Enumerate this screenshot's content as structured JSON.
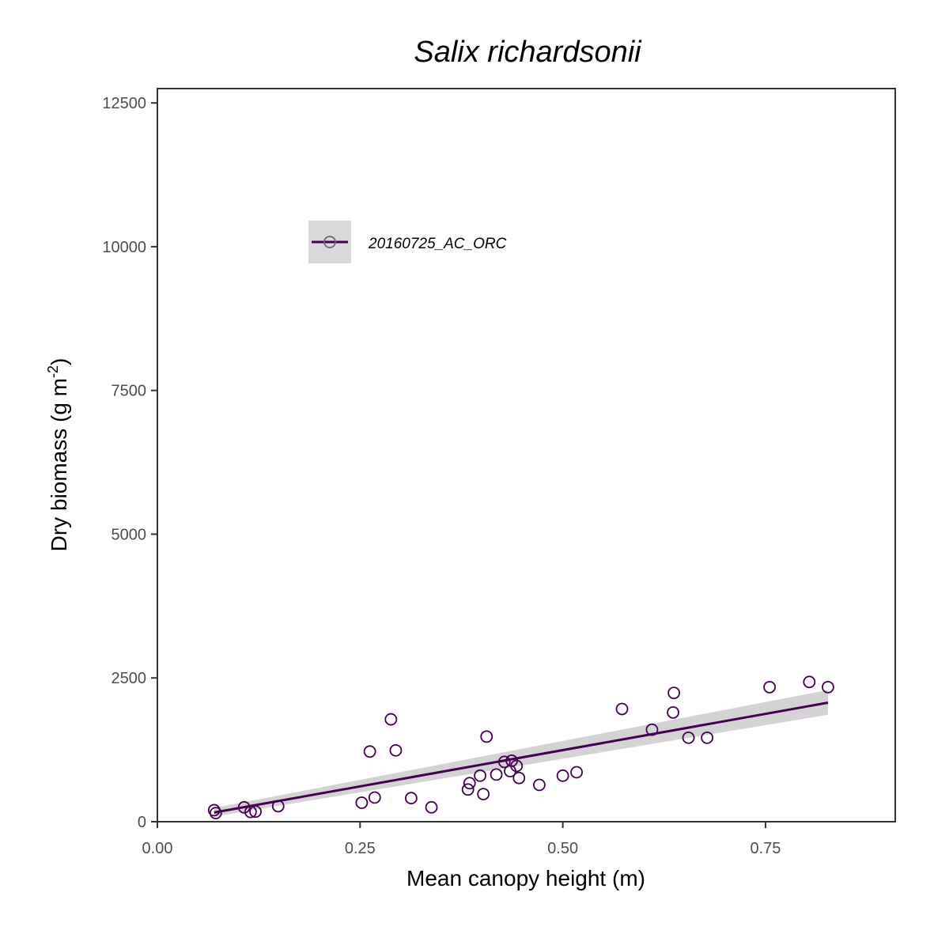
{
  "chart_data": {
    "type": "scatter",
    "title": "Salix richardsonii",
    "xlabel": "Mean canopy height (m)",
    "ylabel": {
      "text": "Dry biomass (g m",
      "sup": "-2",
      "close": ")"
    },
    "xlim": [
      0,
      0.91
    ],
    "ylim": [
      0,
      12750
    ],
    "xticks": [
      "0.00",
      "0.25",
      "0.50",
      "0.75"
    ],
    "xtick_values": [
      0,
      0.25,
      0.5,
      0.75
    ],
    "yticks": [
      "0",
      "2500",
      "5000",
      "7500",
      "10000",
      "12500"
    ],
    "ytick_values": [
      0,
      2500,
      5000,
      7500,
      10000,
      12500
    ],
    "grid": false,
    "legend_position": "top-left inside plot",
    "colors": {
      "series": "#440154",
      "ribbon": "#d3d3d3",
      "axis": "#333333",
      "legend_key_bg": "#d9d9d9"
    },
    "series": [
      {
        "name": "20160725_AC_ORC",
        "points": [
          [
            0.07,
            200
          ],
          [
            0.072,
            150
          ],
          [
            0.107,
            250
          ],
          [
            0.115,
            170
          ],
          [
            0.121,
            175
          ],
          [
            0.149,
            270
          ],
          [
            0.252,
            330
          ],
          [
            0.262,
            1220
          ],
          [
            0.268,
            420
          ],
          [
            0.288,
            1780
          ],
          [
            0.294,
            1240
          ],
          [
            0.313,
            410
          ],
          [
            0.338,
            250
          ],
          [
            0.383,
            560
          ],
          [
            0.385,
            670
          ],
          [
            0.398,
            800
          ],
          [
            0.402,
            480
          ],
          [
            0.406,
            1480
          ],
          [
            0.418,
            820
          ],
          [
            0.428,
            1040
          ],
          [
            0.435,
            880
          ],
          [
            0.437,
            1060
          ],
          [
            0.443,
            970
          ],
          [
            0.446,
            760
          ],
          [
            0.471,
            640
          ],
          [
            0.5,
            800
          ],
          [
            0.517,
            860
          ],
          [
            0.573,
            1960
          ],
          [
            0.61,
            1600
          ],
          [
            0.636,
            1900
          ],
          [
            0.637,
            2240
          ],
          [
            0.655,
            1460
          ],
          [
            0.678,
            1460
          ],
          [
            0.755,
            2340
          ],
          [
            0.804,
            2430
          ],
          [
            0.827,
            2340
          ]
        ]
      }
    ],
    "fit": {
      "type": "linear",
      "x": [
        0.07,
        0.827
      ],
      "y": [
        160,
        2070
      ],
      "ci_lower": [
        90,
        1860
      ],
      "ci_upper": [
        240,
        2290
      ]
    }
  }
}
